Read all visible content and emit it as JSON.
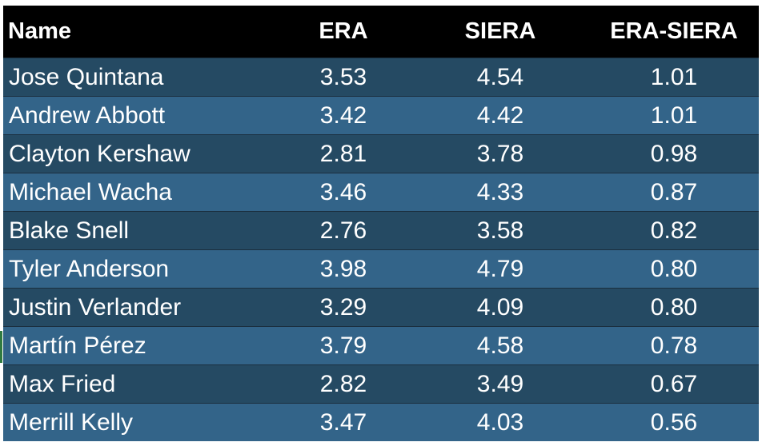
{
  "table": {
    "columns": [
      "Name",
      "ERA",
      "SIERA",
      "ERA-SIERA"
    ],
    "rows": [
      {
        "name": "Jose Quintana",
        "era": "3.53",
        "siera": "4.54",
        "diff": "1.01"
      },
      {
        "name": "Andrew Abbott",
        "era": "3.42",
        "siera": "4.42",
        "diff": "1.01"
      },
      {
        "name": "Clayton Kershaw",
        "era": "2.81",
        "siera": "3.78",
        "diff": "0.98"
      },
      {
        "name": "Michael Wacha",
        "era": "3.46",
        "siera": "4.33",
        "diff": "0.87"
      },
      {
        "name": "Blake Snell",
        "era": "2.76",
        "siera": "3.58",
        "diff": "0.82"
      },
      {
        "name": "Tyler Anderson",
        "era": "3.98",
        "siera": "4.79",
        "diff": "0.80"
      },
      {
        "name": "Justin Verlander",
        "era": "3.29",
        "siera": "4.09",
        "diff": "0.80"
      },
      {
        "name": "Martín Pérez",
        "era": "3.79",
        "siera": "4.58",
        "diff": "0.78"
      },
      {
        "name": "Max Fried",
        "era": "2.82",
        "siera": "3.49",
        "diff": "0.67"
      },
      {
        "name": "Merrill Kelly",
        "era": "3.47",
        "siera": "4.03",
        "diff": "0.56"
      }
    ]
  },
  "colors": {
    "header_bg": "#000000",
    "row_dark": "#254a63",
    "row_light": "#336489",
    "text": "#ffffff"
  }
}
